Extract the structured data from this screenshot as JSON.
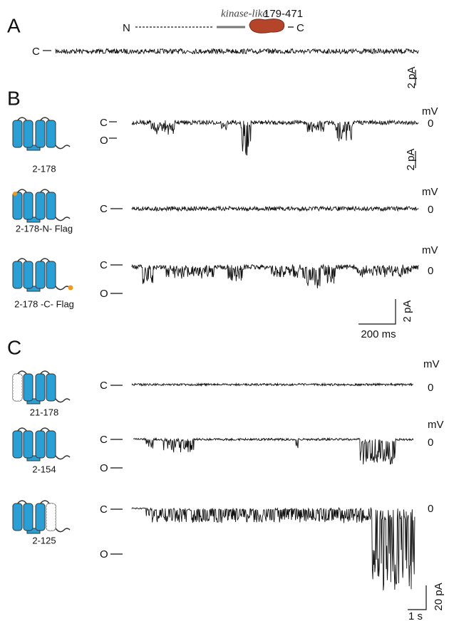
{
  "panel_a": {
    "label": "A",
    "n_terminus": "N",
    "domain": "kinase-like",
    "range": "179-471",
    "c_terminus": "C",
    "state": "C",
    "scale_current": "2 pA"
  },
  "panel_b": {
    "label": "B",
    "rows": [
      {
        "construct": "2-178",
        "closed": "C",
        "open": "O",
        "voltage_unit": "mV",
        "voltage": "0",
        "scale_current": "2 pA"
      },
      {
        "construct": "2-178-N- Flag",
        "closed": "C",
        "voltage_unit": "mV",
        "voltage": "0"
      },
      {
        "construct": "2-178 -C- Flag",
        "closed": "C",
        "open": "O",
        "voltage_unit": "mV",
        "voltage": "0"
      }
    ],
    "scale_current": "2 pA",
    "scale_time": "200 ms"
  },
  "panel_c": {
    "label": "C",
    "rows": [
      {
        "construct": "21-178",
        "closed": "C",
        "voltage_unit": "mV",
        "voltage": "0"
      },
      {
        "construct": "2-154",
        "closed": "C",
        "open": "O",
        "voltage_unit": "mV",
        "voltage": "0"
      },
      {
        "construct": "2-125",
        "closed": "C",
        "open": "O",
        "voltage": "0"
      }
    ],
    "scale_time": "1 s",
    "scale_current": "20 pA"
  }
}
